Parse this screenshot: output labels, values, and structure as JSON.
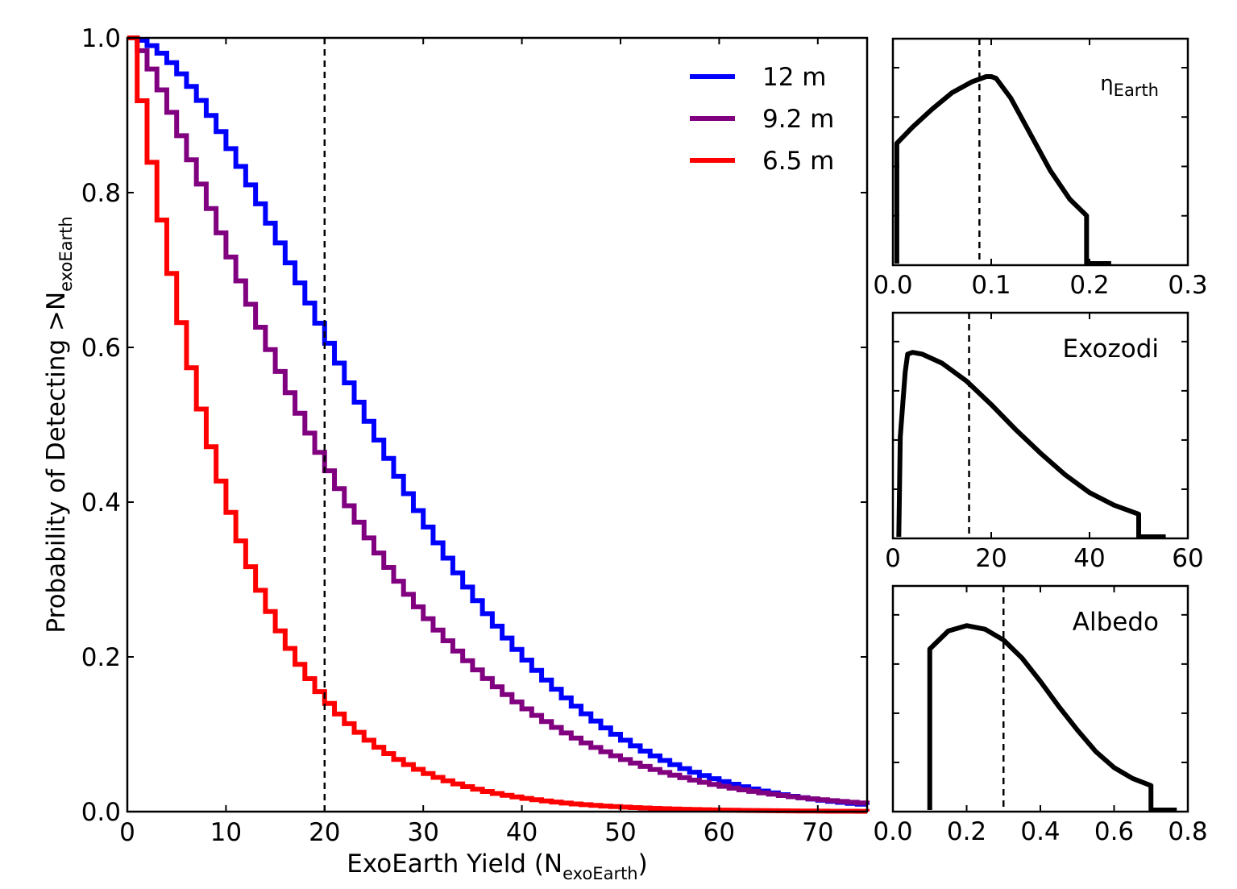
{
  "chart_data": [
    {
      "type": "line",
      "step": true,
      "xlabel": {
        "main": "ExoEarth Yield (N",
        "sub": "exoEarth",
        "close": ")"
      },
      "ylabel": {
        "main": "Probability of Detecting  >N",
        "sub": "exoEarth"
      },
      "xlim": [
        0,
        75
      ],
      "ylim": [
        0,
        1
      ],
      "xticks": [
        0,
        10,
        20,
        30,
        40,
        50,
        60,
        70
      ],
      "yticks": [
        0.0,
        0.2,
        0.4,
        0.6,
        0.8,
        1.0
      ],
      "xtick_labels": [
        "0",
        "10",
        "20",
        "30",
        "40",
        "50",
        "60",
        "70"
      ],
      "ytick_labels": [
        "0.0",
        "0.2",
        "0.4",
        "0.6",
        "0.8",
        "1.0"
      ],
      "vline": 20,
      "legend_position": "top-right",
      "series": [
        {
          "name": "12 m",
          "color": "#0000ff",
          "decay_scale": 30,
          "shape": 1.7
        },
        {
          "name": "9.2 m",
          "color": "#800080",
          "decay_scale": 23.3,
          "shape": 1.3
        },
        {
          "name": "6.5 m",
          "color": "#ff0000",
          "decay_scale": 10.5,
          "shape": 1.05
        }
      ]
    },
    {
      "type": "line",
      "label": {
        "main": "η",
        "sub": "Earth"
      },
      "xlim": [
        0,
        0.3
      ],
      "xticks": [
        0.0,
        0.1,
        0.2,
        0.3
      ],
      "xtick_labels": [
        "0.0",
        "0.1",
        "0.2",
        "0.3"
      ],
      "vline": 0.088,
      "points": [
        [
          0.004,
          0
        ],
        [
          0.004,
          0.63
        ],
        [
          0.02,
          0.72
        ],
        [
          0.04,
          0.82
        ],
        [
          0.06,
          0.91
        ],
        [
          0.08,
          0.97
        ],
        [
          0.095,
          1.0
        ],
        [
          0.1,
          1.0
        ],
        [
          0.105,
          0.99
        ],
        [
          0.12,
          0.88
        ],
        [
          0.14,
          0.68
        ],
        [
          0.16,
          0.48
        ],
        [
          0.18,
          0.32
        ],
        [
          0.197,
          0.23
        ],
        [
          0.197,
          0
        ],
        [
          0.222,
          0
        ]
      ]
    },
    {
      "type": "line",
      "label": {
        "main": "Exozodi",
        "sub": ""
      },
      "xlim": [
        0,
        60
      ],
      "xticks": [
        0,
        20,
        40,
        60
      ],
      "xtick_labels": [
        "0",
        "20",
        "40",
        "60"
      ],
      "vline": 15.5,
      "points": [
        [
          1.2,
          0
        ],
        [
          1.5,
          0.52
        ],
        [
          2.5,
          0.88
        ],
        [
          3,
          0.98
        ],
        [
          4,
          0.99
        ],
        [
          6,
          0.98
        ],
        [
          10,
          0.93
        ],
        [
          15,
          0.83
        ],
        [
          20,
          0.7
        ],
        [
          25,
          0.56
        ],
        [
          30,
          0.43
        ],
        [
          35,
          0.31
        ],
        [
          40,
          0.21
        ],
        [
          45,
          0.14
        ],
        [
          50,
          0.09
        ],
        [
          50,
          0
        ],
        [
          55.5,
          0
        ]
      ]
    },
    {
      "type": "line",
      "label": {
        "main": "Albedo",
        "sub": ""
      },
      "xlim": [
        0,
        0.8
      ],
      "xticks": [
        0.0,
        0.2,
        0.4,
        0.6,
        0.8
      ],
      "xtick_labels": [
        "0.0",
        "0.2",
        "0.4",
        "0.6",
        "0.8"
      ],
      "vline": 0.3,
      "points": [
        [
          0.1,
          0
        ],
        [
          0.1,
          0.86
        ],
        [
          0.12,
          0.9
        ],
        [
          0.15,
          0.96
        ],
        [
          0.2,
          0.99
        ],
        [
          0.25,
          0.97
        ],
        [
          0.3,
          0.91
        ],
        [
          0.35,
          0.81
        ],
        [
          0.4,
          0.68
        ],
        [
          0.45,
          0.54
        ],
        [
          0.5,
          0.41
        ],
        [
          0.55,
          0.29
        ],
        [
          0.6,
          0.2
        ],
        [
          0.65,
          0.14
        ],
        [
          0.7,
          0.1
        ],
        [
          0.7,
          0
        ],
        [
          0.77,
          0
        ]
      ]
    }
  ]
}
